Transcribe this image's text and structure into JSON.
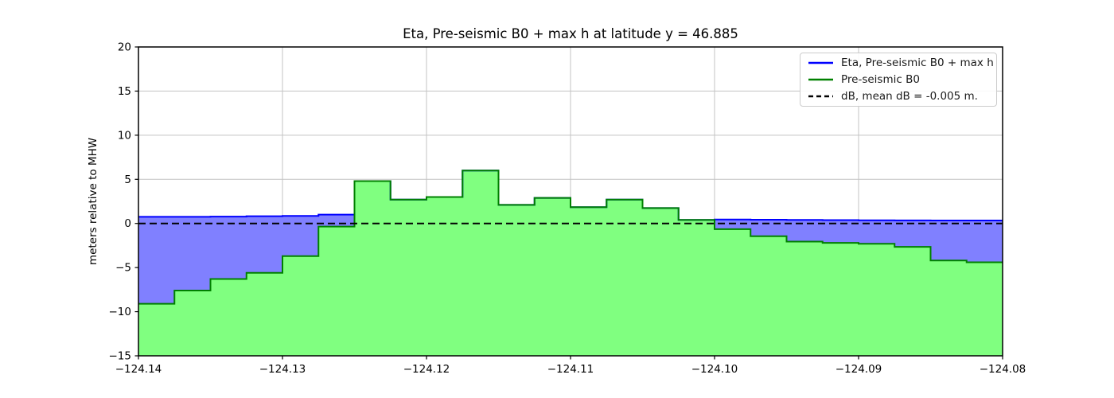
{
  "chart_data": {
    "type": "area",
    "title": "Eta, Pre-seismic B0 + max h at latitude y = 46.885",
    "xlabel": "",
    "ylabel": "meters relative to MHW",
    "xlim": [
      -124.14,
      -124.08
    ],
    "ylim": [
      -15,
      20
    ],
    "grid": true,
    "legend_position": "upper right",
    "xticks": [
      -124.14,
      -124.13,
      -124.12,
      -124.11,
      -124.1,
      -124.09,
      -124.08
    ],
    "xtick_labels": [
      "−124.14",
      "−124.13",
      "−124.12",
      "−124.11",
      "−124.10",
      "−124.09",
      "−124.08"
    ],
    "yticks": [
      20,
      15,
      10,
      5,
      0,
      -5,
      -10,
      -15
    ],
    "ytick_labels": [
      "20",
      "15",
      "10",
      "5",
      "0",
      "−5",
      "−10",
      "−15"
    ],
    "cell_edges": [
      -124.14,
      -124.1375,
      -124.135,
      -124.1325,
      -124.13,
      -124.1275,
      -124.125,
      -124.1225,
      -124.12,
      -124.1175,
      -124.115,
      -124.1125,
      -124.11,
      -124.1075,
      -124.105,
      -124.1025,
      -124.1,
      -124.0975,
      -124.095,
      -124.0925,
      -124.09,
      -124.0875,
      -124.085,
      -124.0825,
      -124.08
    ],
    "series": [
      {
        "name": "Eta, Pre-seismic B0 + max h",
        "kind": "step",
        "line_color": "#0000ff",
        "fill_color": "#8080ff",
        "values": [
          0.75,
          0.75,
          0.78,
          0.82,
          0.85,
          1.0,
          4.8,
          2.7,
          3.0,
          6.0,
          2.1,
          2.9,
          1.85,
          2.7,
          1.75,
          0.4,
          0.45,
          0.42,
          0.4,
          0.38,
          0.36,
          0.35,
          0.34,
          0.33
        ]
      },
      {
        "name": "Pre-seismic B0",
        "kind": "step",
        "line_color": "#008000",
        "fill_color": "#80ff80",
        "values": [
          -9.1,
          -7.6,
          -6.3,
          -5.6,
          -3.7,
          -0.35,
          4.8,
          2.7,
          3.0,
          6.0,
          2.1,
          2.9,
          1.85,
          2.7,
          1.75,
          0.4,
          -0.65,
          -1.45,
          -2.05,
          -2.2,
          -2.3,
          -2.65,
          -4.2,
          -4.4
        ]
      },
      {
        "name": "dB, mean dB = -0.005 m.",
        "kind": "hline",
        "line_color": "#000000",
        "dashed": true,
        "value": -0.005
      }
    ],
    "colors": {
      "grid": "#c3c3c3",
      "spine": "#000000",
      "legend_border": "#cccccc"
    }
  }
}
